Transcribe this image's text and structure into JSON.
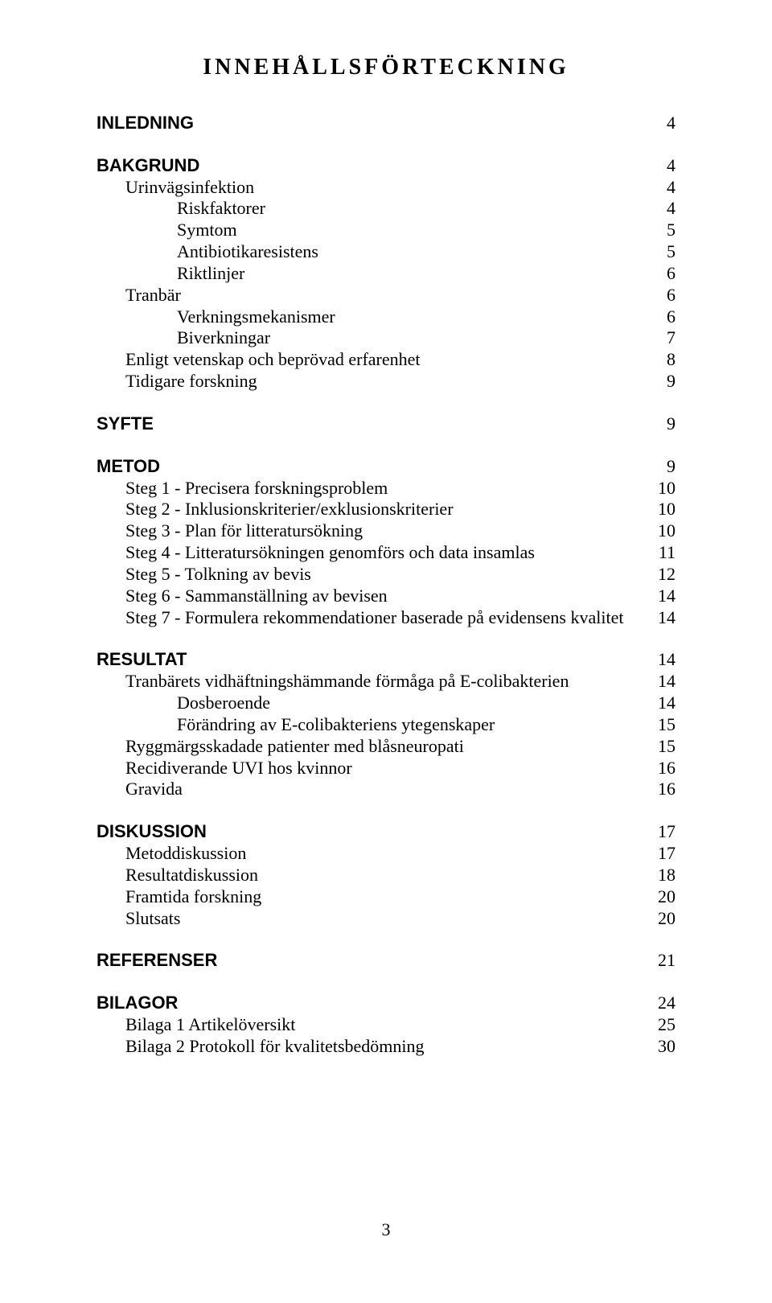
{
  "title": "INNEHÅLLSFÖRTECKNING",
  "page_number": "3",
  "entries": [
    {
      "label": "INLEDNING",
      "page": "4",
      "level": 0,
      "style": "bold-arial",
      "gap_before": 0
    },
    {
      "label": "BAKGRUND",
      "page": "4",
      "level": 0,
      "style": "bold-arial",
      "gap_before": 1
    },
    {
      "label": "Urinvägsinfektion",
      "page": "4",
      "level": 1,
      "style": "",
      "gap_before": 0
    },
    {
      "label": "Riskfaktorer",
      "page": "4",
      "level": 2,
      "style": "",
      "gap_before": 0
    },
    {
      "label": "Symtom",
      "page": "5",
      "level": 2,
      "style": "",
      "gap_before": 0
    },
    {
      "label": "Antibiotikaresistens",
      "page": "5",
      "level": 2,
      "style": "",
      "gap_before": 0
    },
    {
      "label": "Riktlinjer",
      "page": "6",
      "level": 2,
      "style": "",
      "gap_before": 0
    },
    {
      "label": "Tranbär",
      "page": "6",
      "level": 1,
      "style": "",
      "gap_before": 0
    },
    {
      "label": "Verkningsmekanismer",
      "page": "6",
      "level": 2,
      "style": "",
      "gap_before": 0
    },
    {
      "label": "Biverkningar",
      "page": "7",
      "level": 2,
      "style": "",
      "gap_before": 0
    },
    {
      "label": "Enligt vetenskap och beprövad erfarenhet",
      "page": "8",
      "level": 1,
      "style": "",
      "gap_before": 0
    },
    {
      "label": "Tidigare forskning",
      "page": "9",
      "level": 1,
      "style": "",
      "gap_before": 0
    },
    {
      "label": "SYFTE",
      "page": "9",
      "level": 0,
      "style": "bold-arial",
      "gap_before": 1
    },
    {
      "label": "METOD",
      "page": "9",
      "level": 0,
      "style": "bold-arial",
      "gap_before": 1
    },
    {
      "label": "Steg 1 - Precisera forskningsproblem",
      "page": "10",
      "level": 1,
      "style": "",
      "gap_before": 0
    },
    {
      "label": "Steg 2 - Inklusionskriterier/exklusionskriterier",
      "page": "10",
      "level": 1,
      "style": "",
      "gap_before": 0
    },
    {
      "label": "Steg 3 - Plan för litteratursökning",
      "page": "10",
      "level": 1,
      "style": "",
      "gap_before": 0
    },
    {
      "label": "Steg 4 - Litteratursökningen genomförs och data insamlas",
      "page": "11",
      "level": 1,
      "style": "",
      "gap_before": 0
    },
    {
      "label": "Steg 5 - Tolkning av bevis",
      "page": "12",
      "level": 1,
      "style": "",
      "gap_before": 0
    },
    {
      "label": "Steg 6 - Sammanställning av bevisen",
      "page": "14",
      "level": 1,
      "style": "",
      "gap_before": 0
    },
    {
      "label": "Steg 7 - Formulera rekommendationer baserade på evidensens kvalitet",
      "page": "14",
      "level": 1,
      "style": "",
      "gap_before": 0
    },
    {
      "label": "RESULTAT",
      "page": "14",
      "level": 0,
      "style": "bold-arial",
      "gap_before": 1
    },
    {
      "label": "Tranbärets vidhäftningshämmande förmåga på E-colibakterien",
      "page": "14",
      "level": 1,
      "style": "",
      "gap_before": 0
    },
    {
      "label": "Dosberoende",
      "page": "14",
      "level": 2,
      "style": "",
      "gap_before": 0
    },
    {
      "label": "Förändring av E-colibakteriens ytegenskaper",
      "page": "15",
      "level": 2,
      "style": "",
      "gap_before": 0
    },
    {
      "label": "Ryggmärgsskadade patienter med blåsneuropati",
      "page": "15",
      "level": 1,
      "style": "",
      "gap_before": 0
    },
    {
      "label": "Recidiverande UVI hos kvinnor",
      "page": "16",
      "level": 1,
      "style": "",
      "gap_before": 0
    },
    {
      "label": "Gravida",
      "page": "16",
      "level": 1,
      "style": "",
      "gap_before": 0
    },
    {
      "label": "DISKUSSION",
      "page": "17",
      "level": 0,
      "style": "bold-arial",
      "gap_before": 1
    },
    {
      "label": "Metoddiskussion",
      "page": "17",
      "level": 1,
      "style": "",
      "gap_before": 0
    },
    {
      "label": "Resultatdiskussion",
      "page": "18",
      "level": 1,
      "style": "",
      "gap_before": 0
    },
    {
      "label": "Framtida forskning",
      "page": "20",
      "level": 1,
      "style": "",
      "gap_before": 0
    },
    {
      "label": "Slutsats",
      "page": "20",
      "level": 1,
      "style": "",
      "gap_before": 0
    },
    {
      "label": "REFERENSER",
      "page": "21",
      "level": 0,
      "style": "bold-arial",
      "gap_before": 1
    },
    {
      "label": "BILAGOR",
      "page": "24",
      "level": 0,
      "style": "bold-arial",
      "gap_before": 1
    },
    {
      "label": "Bilaga 1 Artikelöversikt",
      "page": "25",
      "level": 1,
      "style": "",
      "gap_before": 0
    },
    {
      "label": "Bilaga 2 Protokoll för kvalitetsbedömning",
      "page": "30",
      "level": 1,
      "style": "",
      "gap_before": 0
    }
  ]
}
